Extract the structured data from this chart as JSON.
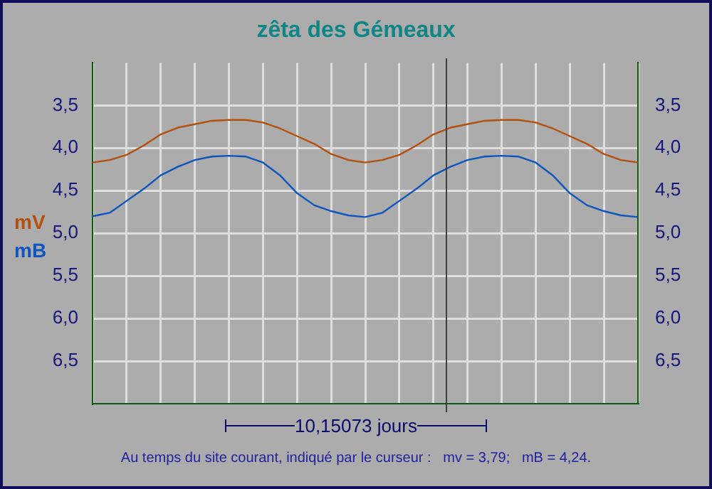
{
  "chart_data": {
    "type": "line",
    "title": "zêta des Gémeaux",
    "categories": [
      null,
      null,
      null,
      null,
      null,
      null,
      null,
      null,
      null,
      null,
      null,
      null,
      null,
      null,
      null,
      null,
      null,
      null,
      null,
      null,
      null,
      null,
      null,
      null,
      null,
      null,
      null,
      null,
      null,
      null,
      null,
      null,
      null
    ],
    "series": [
      {
        "name": "mV",
        "color": "#b4500f",
        "values": [
          4.17,
          4.14,
          4.08,
          3.97,
          3.84,
          3.76,
          3.72,
          3.68,
          3.67,
          3.67,
          3.7,
          3.77,
          3.86,
          3.95,
          4.07,
          4.14,
          4.17,
          4.14,
          4.08,
          3.97,
          3.84,
          3.76,
          3.72,
          3.68,
          3.67,
          3.67,
          3.7,
          3.77,
          3.86,
          3.95,
          4.07,
          4.14,
          4.17
        ]
      },
      {
        "name": "mB",
        "color": "#0f55c0",
        "values": [
          4.8,
          4.76,
          4.62,
          4.48,
          4.32,
          4.22,
          4.14,
          4.1,
          4.09,
          4.1,
          4.17,
          4.32,
          4.53,
          4.67,
          4.74,
          4.79,
          4.81,
          4.76,
          4.62,
          4.48,
          4.32,
          4.22,
          4.14,
          4.1,
          4.09,
          4.1,
          4.17,
          4.32,
          4.53,
          4.67,
          4.74,
          4.79,
          4.81
        ]
      }
    ],
    "ylim": [
      7.0,
      3.0
    ],
    "yticks": [
      {
        "value": 3.5,
        "label": "3,5"
      },
      {
        "value": 4.0,
        "label": "4,0"
      },
      {
        "value": 4.5,
        "label": "4,5"
      },
      {
        "value": 5.0,
        "label": "5,0"
      },
      {
        "value": 5.5,
        "label": "5,5"
      },
      {
        "value": 6.0,
        "label": "6,0"
      },
      {
        "value": 6.5,
        "label": "6,5"
      }
    ],
    "y2lim": [
      7.0,
      3.0
    ],
    "y2ticks": [
      {
        "value": 3.5,
        "label": "3,5"
      },
      {
        "value": 4.0,
        "label": "4,0"
      },
      {
        "value": 4.5,
        "label": "4,5"
      },
      {
        "value": 5.0,
        "label": "5,0"
      },
      {
        "value": 5.5,
        "label": "5,5"
      },
      {
        "value": 6.0,
        "label": "6,0"
      },
      {
        "value": 6.5,
        "label": "6,5"
      }
    ],
    "annotations": [
      "10,15073 jours",
      "Au temps du site courant, indiqué par le curseur :   mv = 3,79;   mB = 4,24."
    ],
    "grid": true,
    "marker": "none",
    "line_style": "solid"
  }
}
